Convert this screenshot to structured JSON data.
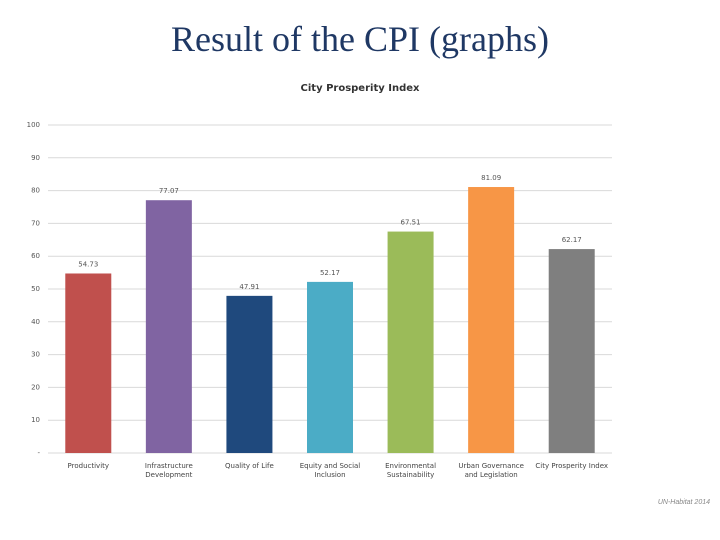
{
  "title": "Result of the CPI (graphs)",
  "credit": "UN-Habitat 2014",
  "chart_data": {
    "type": "bar",
    "title": "City Prosperity Index",
    "categories": [
      "Productivity",
      "Infrastructure Development",
      "Quality of Life",
      "Equity and Social Inclusion",
      "Environmental Sustainability",
      "Urban Governance and Legislation",
      "City Prosperity Index"
    ],
    "values": [
      54.73,
      77.07,
      47.91,
      52.17,
      67.51,
      81.09,
      62.17
    ],
    "colors": [
      "#c0504d",
      "#8064a2",
      "#1f497d",
      "#4bacc6",
      "#9bbb59",
      "#f79646",
      "#7f7f7f"
    ],
    "ylim": [
      0,
      100
    ],
    "yticks": [
      {
        "value": 0,
        "label": "-"
      },
      10,
      20,
      30,
      40,
      50,
      60,
      70,
      80,
      90,
      100
    ],
    "grid": true
  }
}
